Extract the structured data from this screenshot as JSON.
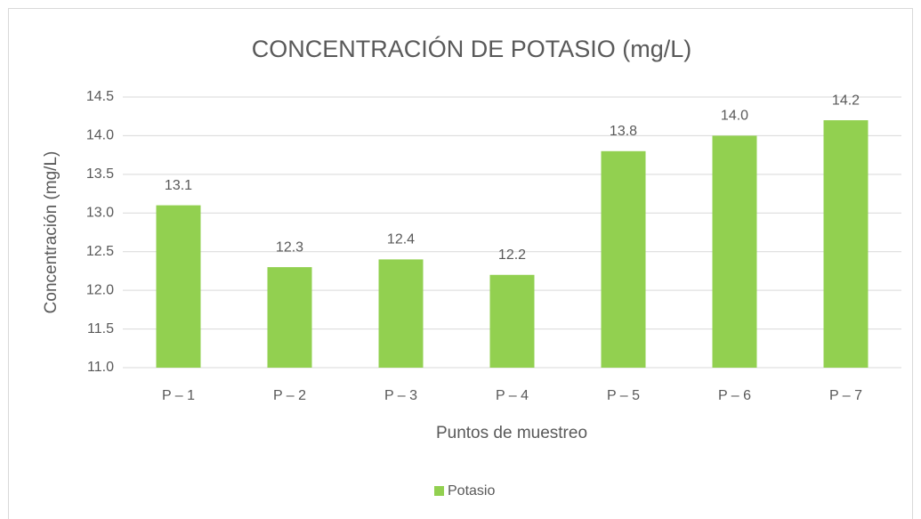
{
  "chart_data": {
    "type": "bar",
    "title": "CONCENTRACIÓN DE POTASIO (mg/L)",
    "categories": [
      "P – 1",
      "P – 2",
      "P – 3",
      "P – 4",
      "P – 5",
      "P – 6",
      "P – 7"
    ],
    "values": [
      13.1,
      12.3,
      12.4,
      12.2,
      13.8,
      14.0,
      14.2
    ],
    "value_labels": [
      "13.1",
      "12.3",
      "12.4",
      "12.2",
      "13.8",
      "14.0",
      "14.2"
    ],
    "color": "#92d050",
    "series_name": "Potasio",
    "x_label": "Puntos de muestreo",
    "y_label": "Concentración (mg/L)",
    "ylim": [
      11,
      14.5
    ],
    "yticks": [
      {
        "value": 11,
        "label": "11.0"
      },
      11.5,
      {
        "value": 12,
        "label": "12.0"
      },
      12.5,
      {
        "value": 13,
        "label": "13.0"
      },
      13.5,
      {
        "value": 14,
        "label": "14.0"
      },
      14.5
    ],
    "grid": true,
    "legend": "bottom"
  }
}
